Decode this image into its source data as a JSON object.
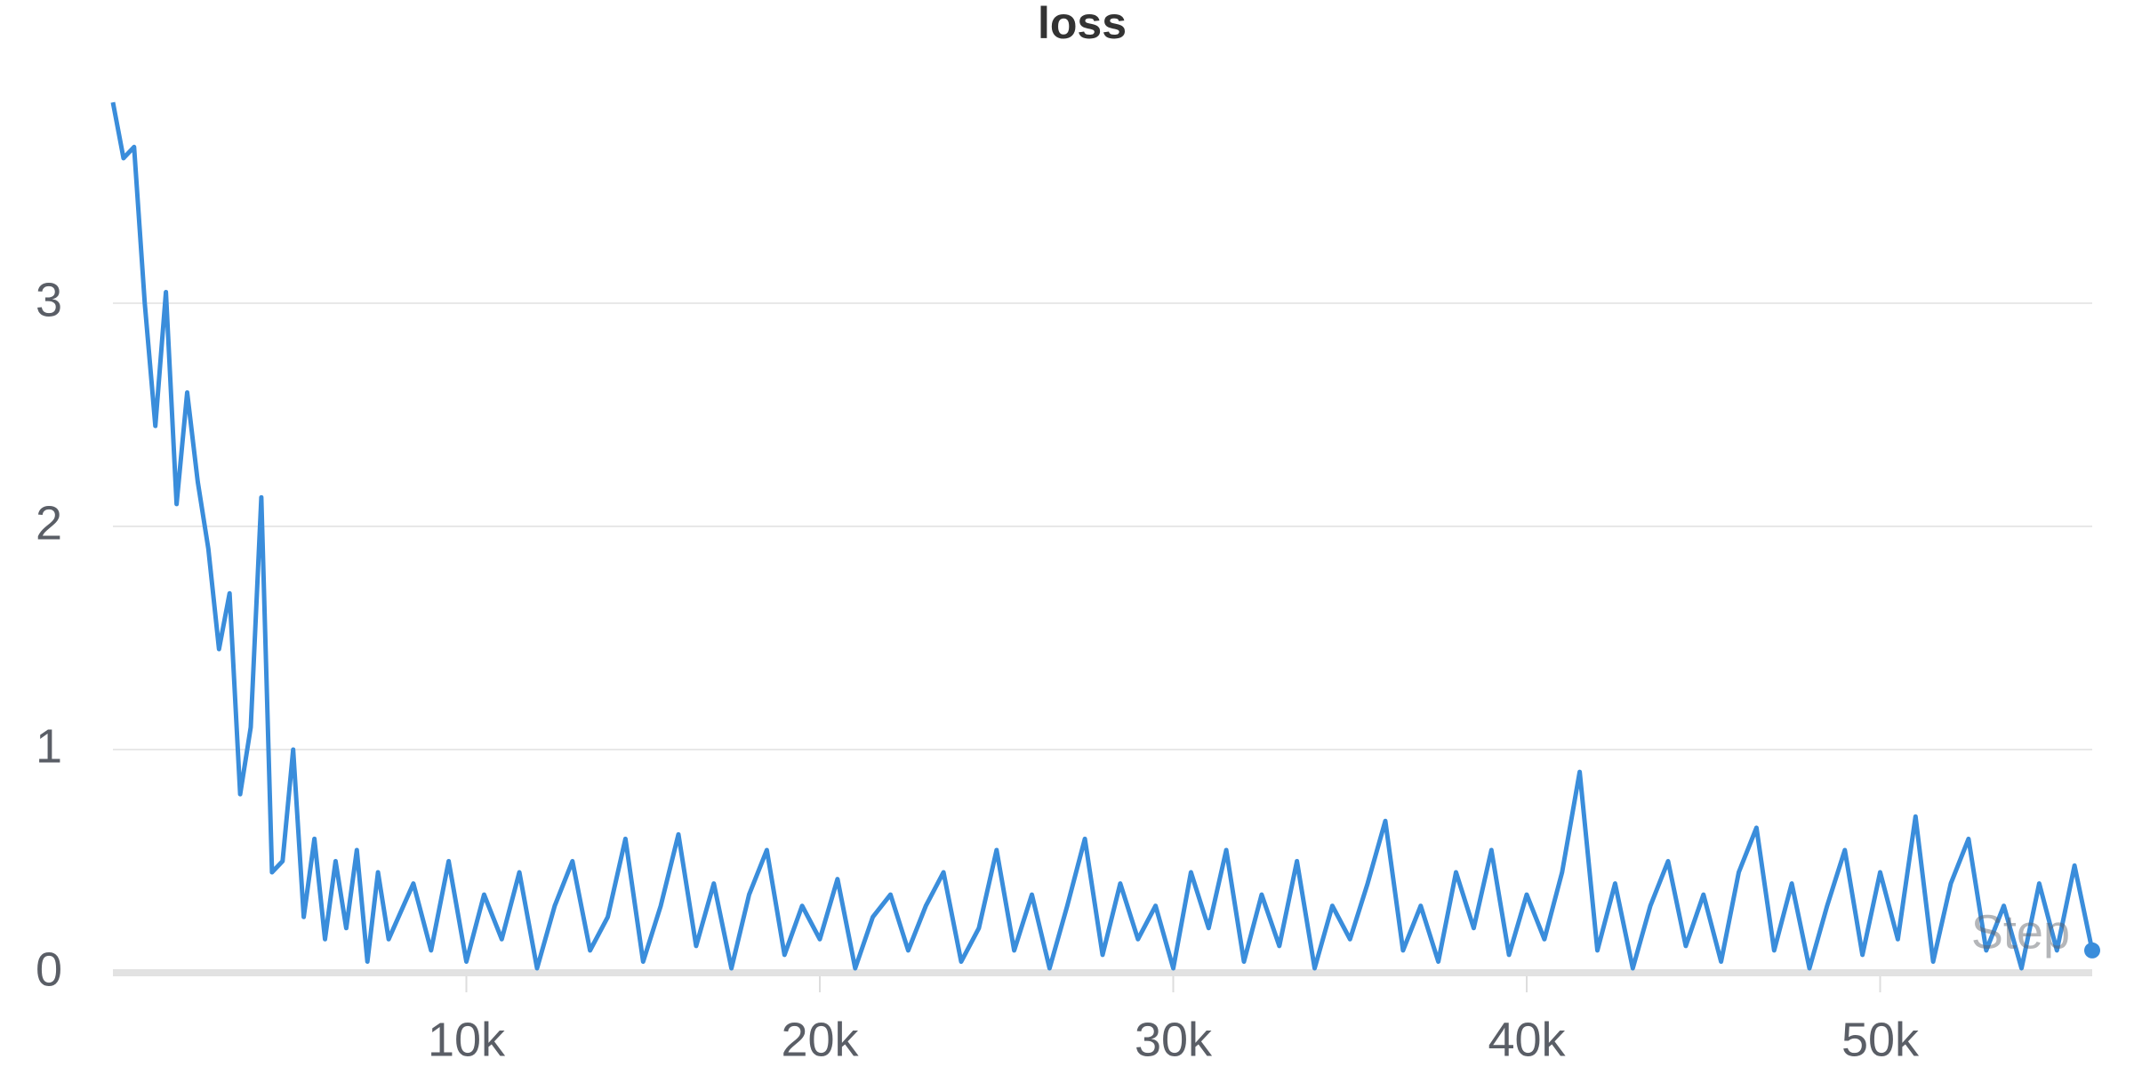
{
  "chart_data": {
    "type": "line",
    "title": "loss",
    "x_label": "Step",
    "color": "#3a8ddb",
    "xlim": [
      0,
      56000
    ],
    "ylim": [
      0,
      4
    ],
    "xticks": [
      {
        "value": 10000,
        "label": "10k"
      },
      {
        "value": 20000,
        "label": "20k"
      },
      {
        "value": 30000,
        "label": "30k"
      },
      {
        "value": 40000,
        "label": "40k"
      },
      {
        "value": 50000,
        "label": "50k"
      }
    ],
    "yticks": [
      0,
      1,
      2,
      3
    ],
    "grid": true,
    "x": [
      0,
      300,
      600,
      900,
      1200,
      1500,
      1800,
      2100,
      2400,
      2700,
      3000,
      3300,
      3600,
      3900,
      4200,
      4500,
      4800,
      5100,
      5400,
      5700,
      6000,
      6300,
      6600,
      6900,
      7200,
      7500,
      7800,
      8500,
      9000,
      9500,
      10000,
      10500,
      11000,
      11500,
      12000,
      12500,
      13000,
      13500,
      14000,
      14500,
      15000,
      15500,
      16000,
      16500,
      17000,
      17500,
      18000,
      18500,
      19000,
      19500,
      20000,
      20500,
      21000,
      21500,
      22000,
      22500,
      23000,
      23500,
      24000,
      24500,
      25000,
      25500,
      26000,
      26500,
      27000,
      27500,
      28000,
      28500,
      29000,
      29500,
      30000,
      30500,
      31000,
      31500,
      32000,
      32500,
      33000,
      33500,
      34000,
      34500,
      35000,
      35500,
      36000,
      36500,
      37000,
      37500,
      38000,
      38500,
      39000,
      39500,
      40000,
      40500,
      41000,
      41500,
      42000,
      42500,
      43000,
      43500,
      44000,
      44500,
      45000,
      45500,
      46000,
      46500,
      47000,
      47500,
      48000,
      48500,
      49000,
      49500,
      50000,
      50500,
      51000,
      51500,
      52000,
      52500,
      53000,
      53500,
      54000,
      54500,
      55000,
      55500,
      56000
    ],
    "values": [
      3.9,
      3.65,
      3.7,
      3.0,
      2.45,
      3.05,
      2.1,
      2.6,
      2.2,
      1.9,
      1.45,
      1.7,
      0.8,
      1.1,
      2.13,
      0.45,
      0.5,
      1.0,
      0.25,
      0.6,
      0.15,
      0.5,
      0.2,
      0.55,
      0.05,
      0.45,
      0.15,
      0.4,
      0.1,
      0.5,
      0.05,
      0.35,
      0.15,
      0.45,
      0.02,
      0.3,
      0.5,
      0.1,
      0.25,
      0.6,
      0.05,
      0.3,
      0.62,
      0.12,
      0.4,
      0.02,
      0.35,
      0.55,
      0.08,
      0.3,
      0.15,
      0.42,
      0.02,
      0.25,
      0.35,
      0.1,
      0.3,
      0.45,
      0.05,
      0.2,
      0.55,
      0.1,
      0.35,
      0.02,
      0.3,
      0.6,
      0.08,
      0.4,
      0.15,
      0.3,
      0.02,
      0.45,
      0.2,
      0.55,
      0.05,
      0.35,
      0.12,
      0.5,
      0.02,
      0.3,
      0.15,
      0.4,
      0.68,
      0.1,
      0.3,
      0.05,
      0.45,
      0.2,
      0.55,
      0.08,
      0.35,
      0.15,
      0.45,
      0.9,
      0.1,
      0.4,
      0.02,
      0.3,
      0.5,
      0.12,
      0.35,
      0.05,
      0.45,
      0.65,
      0.1,
      0.4,
      0.02,
      0.3,
      0.55,
      0.08,
      0.45,
      0.15,
      0.7,
      0.05,
      0.4,
      0.6,
      0.1,
      0.3,
      0.02,
      0.4,
      0.1,
      0.48,
      0.1
    ]
  }
}
